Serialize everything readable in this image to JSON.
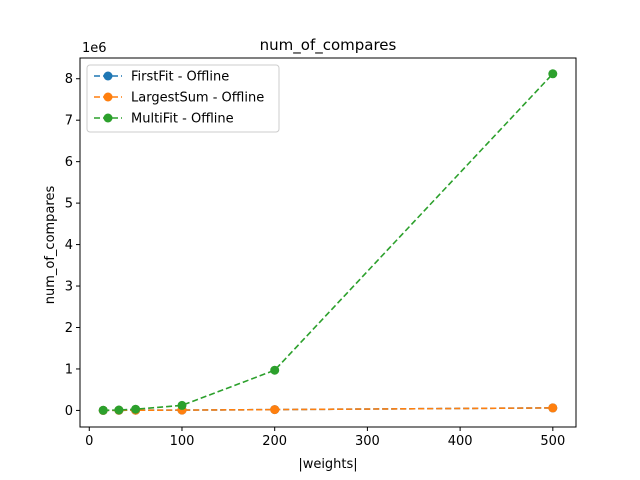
{
  "chart_data": {
    "type": "line",
    "title": "num_of_compares",
    "xlabel": "|weights|",
    "ylabel": "num_of_compares",
    "y_offset_label": "1e6",
    "xlim": [
      -10,
      525
    ],
    "ylim": [
      -0.4,
      8.5
    ],
    "x_ticks": [
      0,
      100,
      200,
      300,
      400,
      500
    ],
    "y_ticks": [
      0,
      1,
      2,
      3,
      4,
      5,
      6,
      7,
      8
    ],
    "x_tick_labels": [
      "0",
      "100",
      "200",
      "300",
      "400",
      "500"
    ],
    "y_tick_labels": [
      "0",
      "1",
      "2",
      "3",
      "4",
      "5",
      "6",
      "7",
      "8"
    ],
    "grid": false,
    "legend_position": "upper-left",
    "series": [
      {
        "name": "FirstFit - Offline",
        "color": "#1f77b4",
        "x": [
          15,
          32,
          50,
          100,
          200,
          500
        ],
        "y": [
          0.0005,
          0.002,
          0.004,
          0.008,
          0.02,
          0.06
        ]
      },
      {
        "name": "LargestSum - Offline",
        "color": "#ff7f0e",
        "x": [
          15,
          32,
          50,
          100,
          200,
          500
        ],
        "y": [
          0.0005,
          0.002,
          0.004,
          0.008,
          0.02,
          0.06
        ]
      },
      {
        "name": "MultiFit - Offline",
        "color": "#2ca02c",
        "x": [
          15,
          32,
          50,
          100,
          200,
          500
        ],
        "y": [
          0.003,
          0.01,
          0.03,
          0.12,
          0.97,
          8.12
        ]
      }
    ]
  }
}
